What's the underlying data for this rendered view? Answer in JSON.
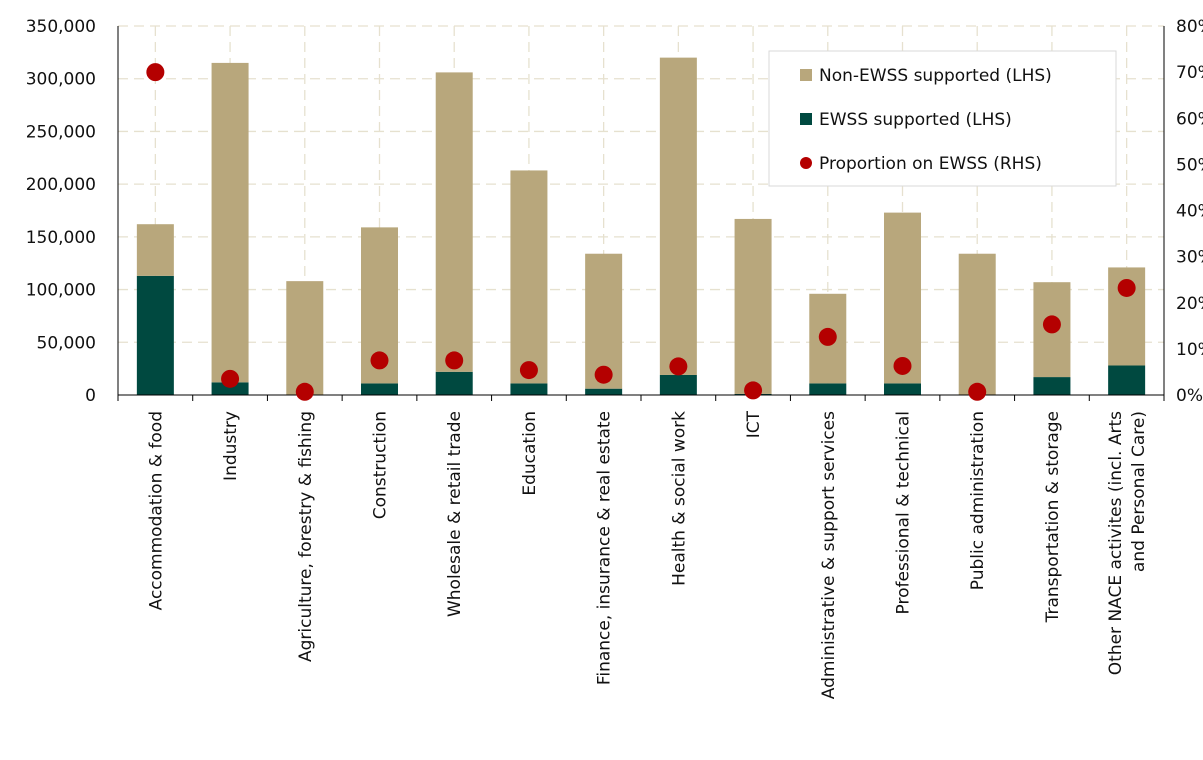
{
  "chart_data": {
    "type": "bar",
    "categories": [
      "Accommodation & food",
      "Industry",
      "Agriculture, forestry & fishing",
      "Construction",
      "Wholesale & retail trade",
      "Education",
      "Finance, insurance & real estate",
      "Health & social work",
      "ICT",
      "Administrative & support services",
      "Professional & technical",
      "Public administration",
      "Transportation & storage",
      [
        "Other NACE activites (incl. Arts",
        "and Personal Care)"
      ]
    ],
    "series": [
      {
        "name": "EWSS supported (LHS)",
        "kind": "stacked-bar",
        "axis": "left",
        "color": "#004940",
        "values": [
          113000,
          12000,
          0,
          11000,
          22000,
          11000,
          6000,
          19000,
          1000,
          11000,
          11000,
          0,
          17000,
          28000
        ]
      },
      {
        "name": "Non-EWSS supported (LHS)",
        "kind": "stacked-bar",
        "axis": "left",
        "color": "#b8a77c",
        "values": [
          49000,
          303000,
          108000,
          148000,
          284000,
          202000,
          128000,
          301000,
          166000,
          85000,
          162000,
          134000,
          90000,
          93000
        ]
      },
      {
        "name": "Proportion on EWSS (RHS)",
        "kind": "scatter",
        "axis": "right",
        "color": "#b40000",
        "values": [
          0.7,
          0.035,
          0.007,
          0.075,
          0.075,
          0.054,
          0.044,
          0.062,
          0.01,
          0.126,
          0.063,
          0.007,
          0.153,
          0.232
        ]
      }
    ],
    "y_left": {
      "lim": [
        0,
        350000
      ],
      "ticks": [
        0,
        50000,
        100000,
        150000,
        200000,
        250000,
        300000,
        350000
      ],
      "tick_labels": [
        "0",
        "50,000",
        "100,000",
        "150,000",
        "200,000",
        "250,000",
        "300,000",
        "350,000"
      ]
    },
    "y_right": {
      "lim": [
        0,
        0.8
      ],
      "ticks": [
        0,
        0.1,
        0.2,
        0.3,
        0.4,
        0.5,
        0.6,
        0.7,
        0.8
      ],
      "tick_labels": [
        "0%",
        "10%",
        "20%",
        "30%",
        "40%",
        "50%",
        "60%",
        "70%",
        "80%"
      ]
    },
    "legend": {
      "position": "top-right",
      "order": [
        "Non-EWSS supported (LHS)",
        "EWSS supported (LHS)",
        "Proportion on EWSS (RHS)"
      ]
    },
    "grid": true
  }
}
